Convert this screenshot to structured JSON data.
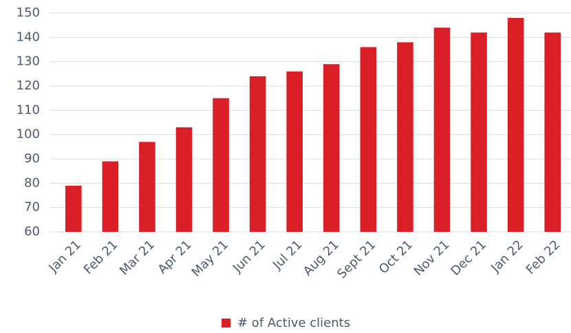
{
  "chart_data": {
    "type": "bar",
    "categories": [
      "Jan 21",
      "Feb 21",
      "Mar 21",
      "Apr 21",
      "May 21",
      "Jun 21",
      "Jul 21",
      "Aug 21",
      "Sept 21",
      "Oct 21",
      "Nov 21",
      "Dec 21",
      "Jan 22",
      "Feb 22"
    ],
    "series": [
      {
        "name": "# of Active clients",
        "color": "#da1f26",
        "values": [
          79,
          89,
          97,
          103,
          115,
          124,
          126,
          129,
          136,
          138,
          144,
          142,
          148,
          142
        ]
      }
    ],
    "ylim": [
      60,
      150
    ],
    "yticks": [
      60,
      70,
      80,
      90,
      100,
      110,
      120,
      130,
      140,
      150
    ],
    "grid": true,
    "legend": "bottom"
  }
}
